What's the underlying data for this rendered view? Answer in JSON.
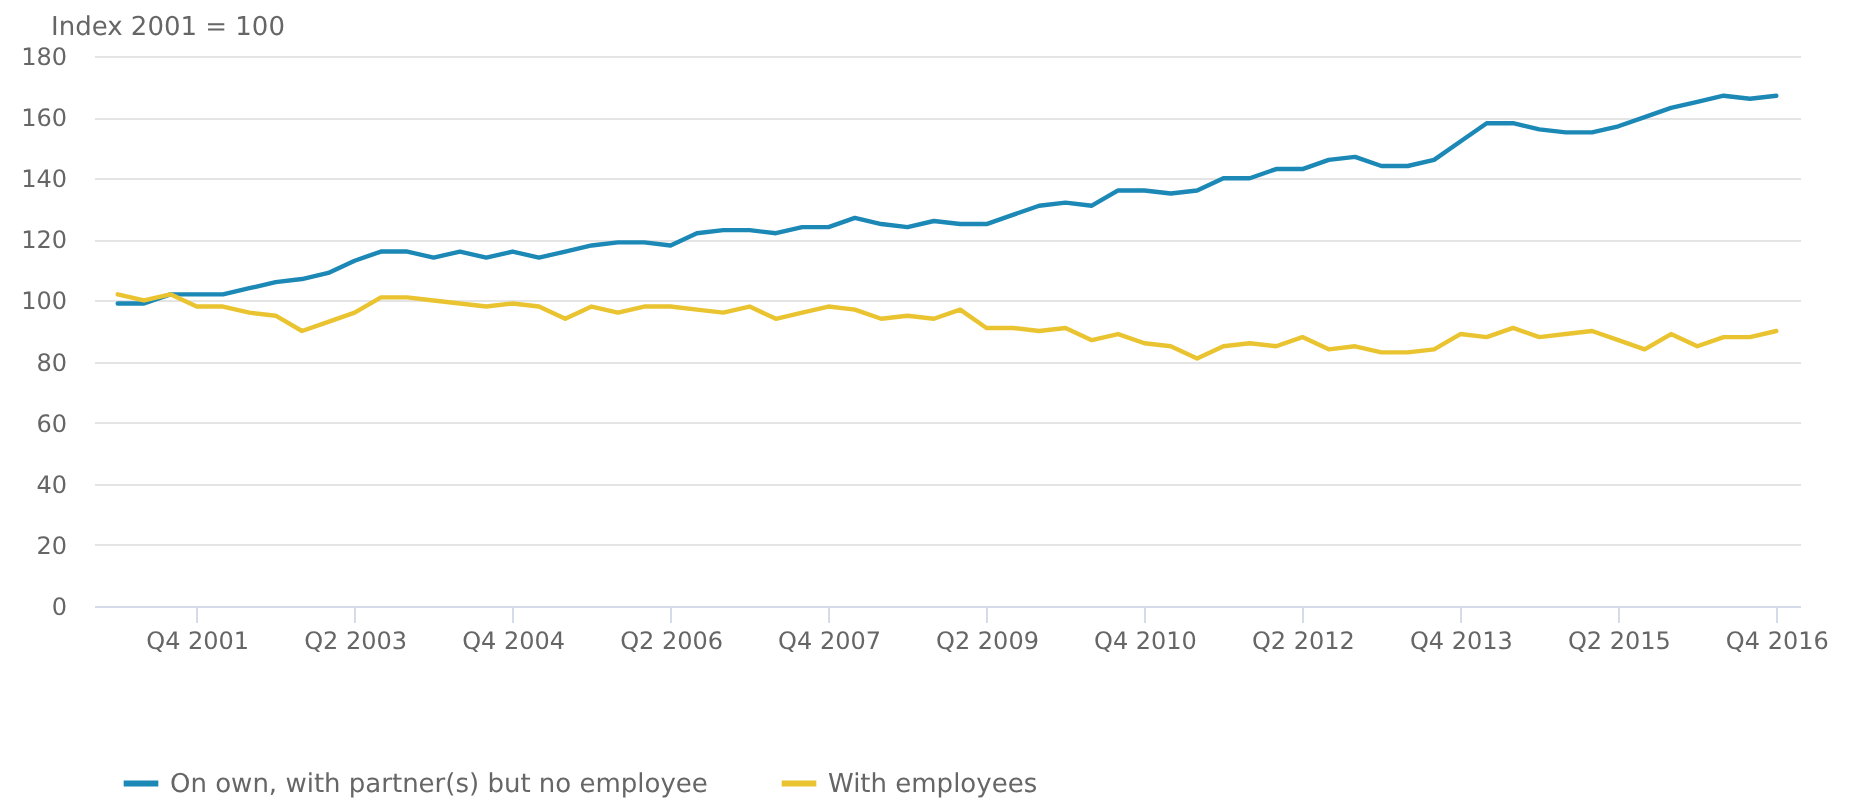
{
  "chart_data": {
    "type": "line",
    "ylabel": "Index 2001 = 100",
    "categories": [
      null,
      null,
      null,
      "Q4 2001",
      null,
      null,
      null,
      null,
      null,
      "Q2 2003",
      null,
      null,
      null,
      null,
      null,
      "Q4 2004",
      null,
      null,
      null,
      null,
      null,
      "Q2 2006",
      null,
      null,
      null,
      null,
      null,
      "Q4 2007",
      null,
      null,
      null,
      null,
      null,
      "Q2 2009",
      null,
      null,
      null,
      null,
      null,
      "Q4 2010",
      null,
      null,
      null,
      null,
      null,
      "Q2 2012",
      null,
      null,
      null,
      null,
      null,
      "Q4 2013",
      null,
      null,
      null,
      null,
      null,
      "Q2 2015",
      null,
      null,
      null,
      null,
      null,
      "Q4 2016"
    ],
    "series": [
      {
        "name": "On own, with partner(s) but no employee",
        "color": "#1b88b6",
        "values": [
          99,
          99,
          102,
          102,
          102,
          104,
          106,
          107,
          109,
          113,
          116,
          116,
          114,
          116,
          114,
          116,
          114,
          116,
          118,
          119,
          119,
          118,
          122,
          123,
          123,
          122,
          124,
          124,
          127,
          125,
          124,
          126,
          125,
          125,
          128,
          131,
          132,
          131,
          136,
          136,
          135,
          136,
          140,
          140,
          143,
          143,
          146,
          147,
          144,
          144,
          146,
          152,
          158,
          158,
          156,
          155,
          155,
          157,
          160,
          163,
          165,
          167,
          166,
          167
        ]
      },
      {
        "name": "With employees",
        "color": "#eac430",
        "values": [
          102,
          100,
          102,
          98,
          98,
          96,
          95,
          90,
          93,
          96,
          101,
          101,
          100,
          99,
          98,
          99,
          98,
          94,
          98,
          96,
          98,
          98,
          97,
          96,
          98,
          94,
          96,
          98,
          97,
          94,
          95,
          94,
          97,
          91,
          91,
          90,
          91,
          87,
          89,
          86,
          85,
          81,
          85,
          86,
          85,
          88,
          84,
          85,
          83,
          83,
          84,
          89,
          88,
          91,
          88,
          89,
          90,
          87,
          84,
          89,
          85,
          88,
          88,
          90
        ]
      }
    ],
    "ylim": [
      0,
      180
    ],
    "yticks": [
      0,
      20,
      40,
      60,
      80,
      100,
      120,
      140,
      160,
      180
    ],
    "grid": "y",
    "legend": "bottom",
    "line_style": "solid",
    "marker": "none"
  }
}
